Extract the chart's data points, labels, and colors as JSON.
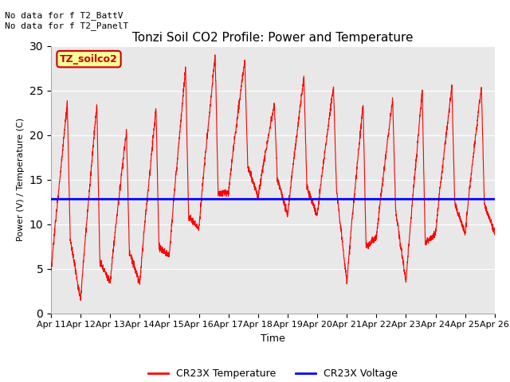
{
  "title": "Tonzi Soil CO2 Profile: Power and Temperature",
  "ylabel": "Power (V) / Temperature (C)",
  "xlabel": "Time",
  "annotation_text": "No data for f T2_BattV\nNo data for f T2_PanelT",
  "legend_label_box": "TZ_soilco2",
  "legend_label_temp": "CR23X Temperature",
  "legend_label_volt": "CR23X Voltage",
  "ylim": [
    0,
    30
  ],
  "yticks": [
    0,
    5,
    10,
    15,
    20,
    25,
    30
  ],
  "voltage_level": 12.8,
  "x_labels": [
    "Apr 11",
    "Apr 12",
    "Apr 13",
    "Apr 14",
    "Apr 15",
    "Apr 16",
    "Apr 17",
    "Apr 18",
    "Apr 19",
    "Apr 20",
    "Apr 21",
    "Apr 22",
    "Apr 23",
    "Apr 24",
    "Apr 25",
    "Apr 26"
  ],
  "plot_bg_color": "#e8e8e8",
  "temp_color": "#ff0000",
  "volt_color": "#0000ff",
  "box_fill_color": "#ffff99",
  "box_edge_color": "#cc0000"
}
